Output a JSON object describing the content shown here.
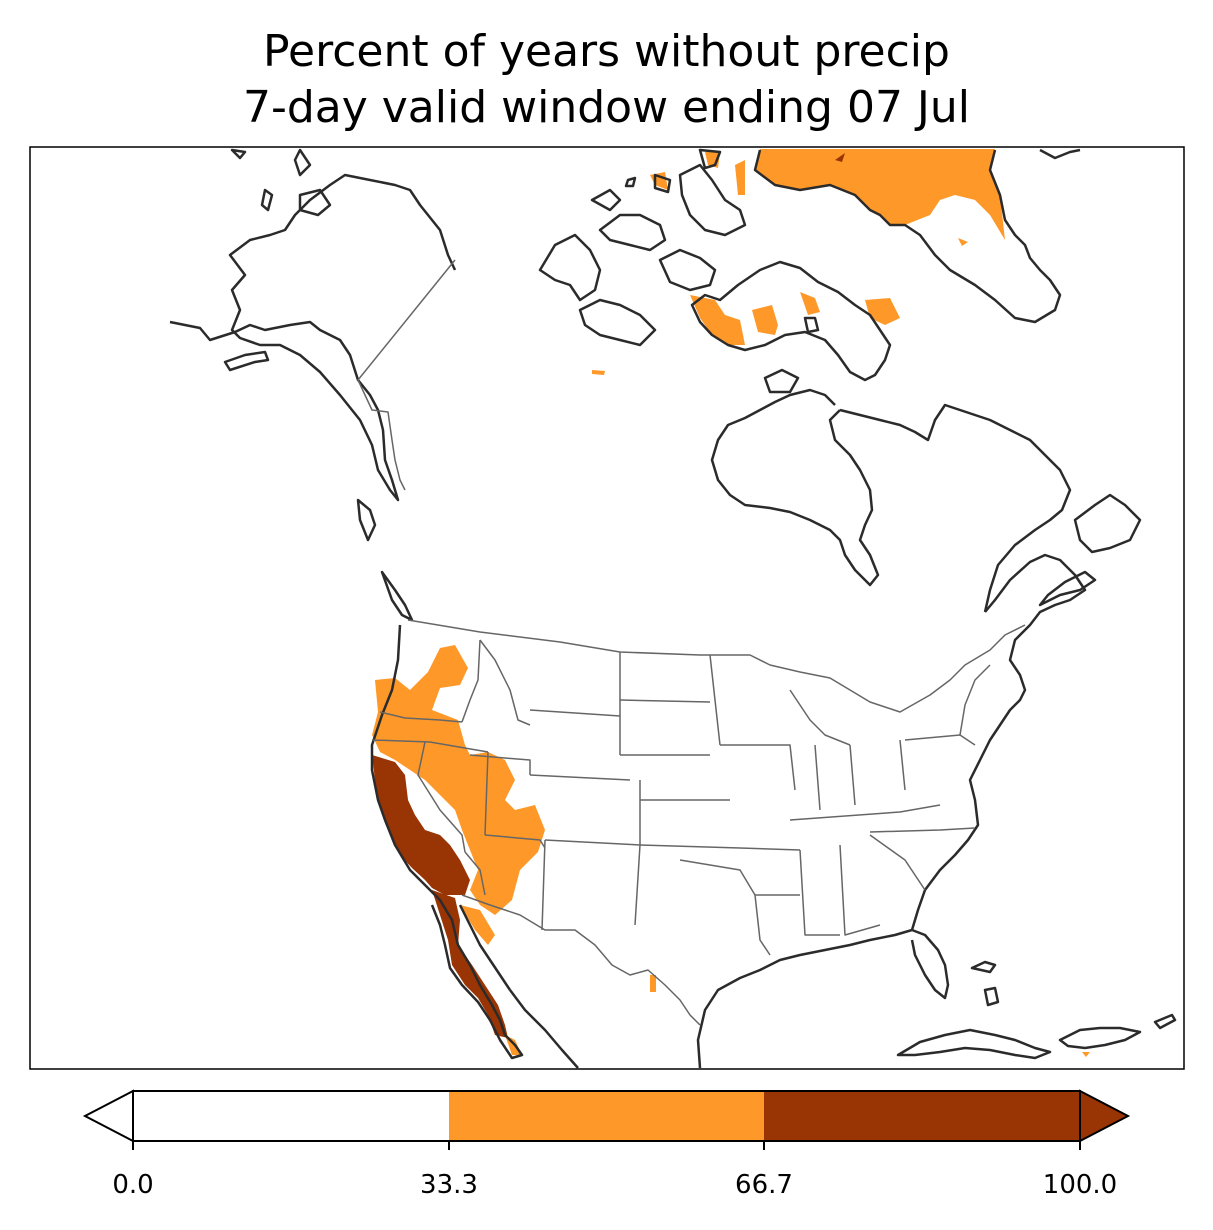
{
  "title": {
    "line1": "Percent of years without precip",
    "line2": "7-day valid window ending 07 Jul"
  },
  "colorbar": {
    "bins": [
      {
        "from": 0.0,
        "to": 33.3,
        "color": "#ffffff"
      },
      {
        "from": 33.3,
        "to": 66.7,
        "color": "#fe9929"
      },
      {
        "from": 66.7,
        "to": 100.0,
        "color": "#993404"
      }
    ],
    "extend": "both",
    "ticks": [
      "0.0",
      "33.3",
      "66.7",
      "100.0"
    ]
  },
  "map": {
    "region": "North America",
    "colors": {
      "coastline": "#2b2b2b",
      "border": "#666666",
      "mid_bin": "#fe9929",
      "high_bin": "#993404"
    }
  }
}
